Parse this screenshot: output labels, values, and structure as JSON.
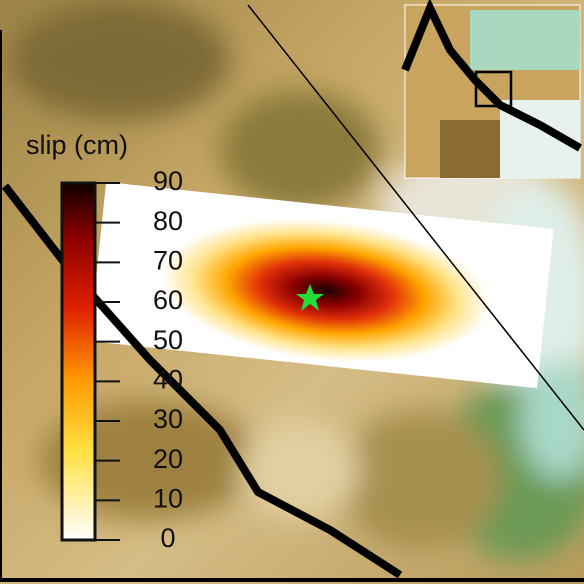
{
  "colorbar": {
    "label": "slip (cm)",
    "lim": [
      0,
      90
    ],
    "ticks": [
      0,
      10,
      20,
      30,
      40,
      50,
      60,
      70,
      80,
      90
    ]
  }
}
